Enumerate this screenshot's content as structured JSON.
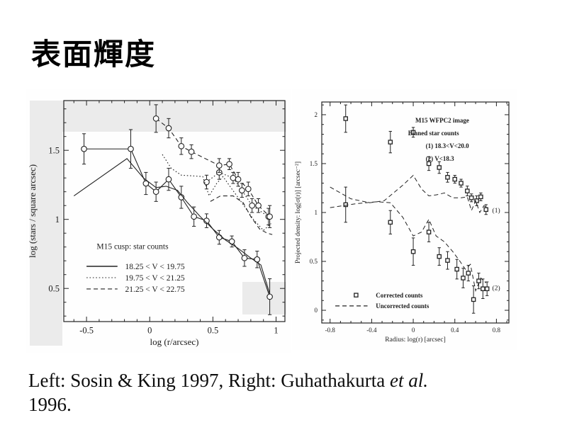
{
  "slide": {
    "title": "表面輝度",
    "caption": {
      "line1": "Left: Sosin & King 1997, Right: Guhathakurta ",
      "etal": "et al.",
      "line2": "1996."
    }
  },
  "colors": {
    "ink": "#222222",
    "scan_patch": "#ebebeb",
    "background": "#ffffff"
  },
  "chart_data": [
    {
      "id": "left",
      "type": "line",
      "title": "",
      "xlabel": "log (r/arcsec)",
      "ylabel": "log (stars / square arcsec)",
      "xlim": [
        -0.68,
        1.07
      ],
      "ylim": [
        0.26,
        1.86
      ],
      "xticks": [
        -0.5,
        0,
        0.5,
        1
      ],
      "xtick_labels": [
        "-0.5",
        "0",
        "0.5",
        "1"
      ],
      "yticks": [
        0.5,
        1,
        1.5
      ],
      "ytick_labels": [
        "0.5",
        "1",
        "1.5"
      ],
      "minor_step": 0.1,
      "grid": false,
      "legend": {
        "title": "M15 cusp: star counts",
        "entries": [
          {
            "style": "solid",
            "label": "18.25 < V < 19.75"
          },
          {
            "style": "dotted",
            "label": "19.75 < V < 21.25"
          },
          {
            "style": "dashed",
            "label": "21.25 < V < 22.75"
          }
        ]
      },
      "series": [
        {
          "name": "bright-counts",
          "style": "solid",
          "marker": "circle",
          "x": [
            -0.52,
            -0.15,
            -0.03,
            0.05,
            0.15,
            0.25,
            0.35,
            0.45,
            0.55,
            0.65,
            0.75,
            0.85,
            0.95
          ],
          "y": [
            1.51,
            1.51,
            1.26,
            1.2,
            1.29,
            1.16,
            1.02,
            0.99,
            0.87,
            0.84,
            0.72,
            0.71,
            0.44
          ],
          "err": [
            0.11,
            0.14,
            0.08,
            0.07,
            0.08,
            0.08,
            0.07,
            0.05,
            0.05,
            0.04,
            0.06,
            0.06,
            0.13
          ]
        },
        {
          "name": "bright-model",
          "style": "solid",
          "marker": "none",
          "x": [
            -0.6,
            -0.18,
            -0.05,
            0.05,
            0.13,
            0.22,
            0.3,
            0.4,
            0.5,
            0.6,
            0.7,
            0.8,
            0.88,
            0.95
          ],
          "y": [
            1.17,
            1.44,
            1.3,
            1.23,
            1.24,
            1.21,
            1.12,
            1.02,
            0.93,
            0.85,
            0.79,
            0.72,
            0.67,
            0.46
          ]
        },
        {
          "name": "intermediate-counts",
          "style": "dotted",
          "marker": "circle",
          "x": [
            0.45,
            0.55,
            0.66,
            0.73,
            0.81,
            0.94
          ],
          "y": [
            1.27,
            1.34,
            1.3,
            1.21,
            1.1,
            1.02
          ],
          "err": [
            0.05,
            0.05,
            0.04,
            0.05,
            0.05,
            0.06
          ]
        },
        {
          "name": "intermediate-model",
          "style": "dotted",
          "marker": "none",
          "x": [
            0.1,
            0.17,
            0.25,
            0.42,
            0.47,
            0.53,
            0.58,
            0.65,
            0.73,
            0.82,
            0.9,
            0.96
          ],
          "y": [
            1.47,
            1.37,
            1.32,
            1.31,
            1.17,
            1.26,
            1.31,
            1.22,
            1.12,
            1.0,
            0.92,
            0.97
          ]
        },
        {
          "name": "faint-counts",
          "style": "dashed",
          "marker": "circle",
          "x": [
            0.05,
            0.15,
            0.25,
            0.33,
            0.55,
            0.63,
            0.7,
            0.78,
            0.86,
            0.95
          ],
          "y": [
            1.73,
            1.66,
            1.53,
            1.49,
            1.39,
            1.4,
            1.29,
            1.22,
            1.1,
            1.02
          ],
          "err": [
            0.1,
            0.07,
            0.06,
            0.05,
            0.05,
            0.04,
            0.05,
            0.05,
            0.05,
            0.08
          ]
        },
        {
          "name": "faint-model",
          "style": "dashed",
          "marker": "none",
          "x": [
            0.48,
            0.56,
            0.66,
            0.74,
            0.8,
            0.87,
            0.93,
            0.97
          ],
          "y": [
            1.13,
            1.17,
            1.17,
            1.12,
            1.02,
            0.93,
            0.9,
            0.89
          ]
        }
      ]
    },
    {
      "id": "right",
      "type": "line",
      "title": "",
      "xlabel": "Radius: log(r) [arcsec]",
      "ylabel": "Projected density: log[σ(r)] [arcsec⁻²]",
      "xlim": [
        -0.88,
        0.92
      ],
      "ylim": [
        -0.13,
        2.13
      ],
      "xticks": [
        -0.8,
        -0.4,
        0,
        0.4,
        0.8
      ],
      "xtick_labels": [
        "-0.8",
        "-0.4",
        "0",
        "0.4",
        "0.8"
      ],
      "yticks": [
        0,
        0.5,
        1,
        1.5,
        2
      ],
      "ytick_labels": [
        "0",
        "0.5",
        "1",
        "1.5",
        "2"
      ],
      "minor_step": 0.1,
      "grid": false,
      "legend_lines": [
        "M15 WFPC2 image",
        "Binned star counts",
        "(1) 18.3<V<20.0",
        "(2) V<18.3"
      ],
      "legend2": {
        "entries": [
          {
            "marker": "square",
            "label": "Corrected counts"
          },
          {
            "style": "dashed",
            "label": "Uncorrected counts"
          }
        ]
      },
      "point_labels": [
        {
          "text": "(1)",
          "x": 0.76,
          "y": 1.02
        },
        {
          "text": "(2)",
          "x": 0.76,
          "y": 0.23
        }
      ],
      "series": [
        {
          "name": "corrected-counts-1",
          "style": "none",
          "marker": "square",
          "x": [
            -0.65,
            -0.22,
            0.0,
            0.15,
            0.25,
            0.33,
            0.4,
            0.46,
            0.52,
            0.56,
            0.61,
            0.65,
            0.7
          ],
          "y": [
            1.96,
            1.72,
            1.82,
            1.5,
            1.46,
            1.36,
            1.34,
            1.3,
            1.22,
            1.15,
            1.12,
            1.16,
            1.03
          ],
          "err": [
            0.14,
            0.11,
            0.05,
            0.07,
            0.06,
            0.05,
            0.04,
            0.04,
            0.05,
            0.04,
            0.05,
            0.04,
            0.05
          ]
        },
        {
          "name": "corrected-counts-2",
          "style": "none",
          "marker": "square",
          "x": [
            -0.65,
            -0.22,
            0.0,
            0.15,
            0.25,
            0.33,
            0.42,
            0.48,
            0.53,
            0.58,
            0.63,
            0.67,
            0.71
          ],
          "y": [
            1.08,
            0.9,
            0.6,
            0.8,
            0.55,
            0.51,
            0.42,
            0.33,
            0.38,
            0.11,
            0.3,
            0.22,
            0.22
          ],
          "err": [
            0.18,
            0.12,
            0.14,
            0.1,
            0.09,
            0.09,
            0.1,
            0.1,
            0.08,
            0.14,
            0.08,
            0.1,
            0.07
          ]
        },
        {
          "name": "uncorrected-counts-1",
          "style": "dashed",
          "marker": "none",
          "x": [
            -0.8,
            -0.6,
            -0.42,
            -0.28,
            -0.1,
            0.0,
            0.08,
            0.15,
            0.22,
            0.3,
            0.38,
            0.46,
            0.52,
            0.56,
            0.6,
            0.64,
            0.68,
            0.72
          ],
          "y": [
            1.26,
            1.14,
            1.1,
            1.12,
            1.28,
            1.38,
            1.24,
            1.17,
            1.18,
            1.2,
            1.15,
            1.15,
            1.16,
            1.02,
            1.12,
            1.0,
            1.07,
            1.04
          ]
        },
        {
          "name": "uncorrected-counts-2",
          "style": "dashed",
          "marker": "none",
          "x": [
            -0.8,
            -0.55,
            -0.35,
            -0.22,
            -0.1,
            0.0,
            0.08,
            0.15,
            0.22,
            0.3,
            0.38,
            0.45,
            0.5,
            0.55,
            0.6,
            0.65,
            0.7
          ],
          "y": [
            1.05,
            1.09,
            1.11,
            1.1,
            0.95,
            0.76,
            0.8,
            0.93,
            0.76,
            0.7,
            0.6,
            0.5,
            0.42,
            0.47,
            0.2,
            0.33,
            0.28
          ]
        }
      ]
    }
  ]
}
